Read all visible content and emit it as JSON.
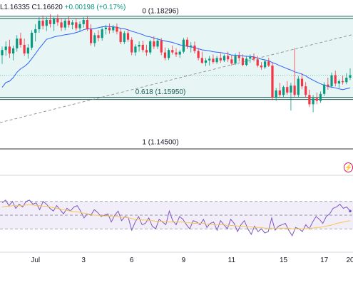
{
  "header": {
    "low": "L1.16335",
    "close": "C1.16620",
    "change": "+0.00198 (+0.17%)"
  },
  "icons": {
    "alert": "lightning-icon"
  },
  "colors": {
    "up": "#089981",
    "down": "#f23645",
    "ma": "#2962ff",
    "fib_band": "#e0f2f1",
    "fib_line": "#1a5c52",
    "rsi_line": "#7e57c2",
    "rsi_ma": "#f9c74f",
    "rsi_band": "#ede7f6"
  },
  "chart_data": [
    {
      "type": "candlestick",
      "title": "",
      "ylim": [
        1.142,
        1.1855
      ],
      "fib_levels": [
        {
          "ratio": 0,
          "price": 1.18296,
          "label": "0 (1.18296)"
        },
        {
          "ratio": 0.618,
          "price": 1.1595,
          "label": "0.618 (1.15950)"
        },
        {
          "ratio": 1,
          "price": 1.145,
          "label": "1 (1.14500)"
        }
      ],
      "x_ticks": [
        "Jul",
        "3",
        "6",
        "9",
        "11",
        "15",
        "17",
        "20"
      ],
      "trendline": {
        "style": "dashed",
        "from": [
          0,
          1.1525
        ],
        "to": [
          100,
          1.178
        ]
      },
      "candles": [
        [
          1.172,
          1.1745,
          1.1695,
          1.1735
        ],
        [
          1.1735,
          1.176,
          1.1718,
          1.1745
        ],
        [
          1.1745,
          1.1765,
          1.1712,
          1.1725
        ],
        [
          1.1725,
          1.1748,
          1.1705,
          1.174
        ],
        [
          1.174,
          1.1778,
          1.173,
          1.1768
        ],
        [
          1.1768,
          1.1785,
          1.1742,
          1.175
        ],
        [
          1.175,
          1.1768,
          1.1718,
          1.1725
        ],
        [
          1.1725,
          1.1752,
          1.171,
          1.1742
        ],
        [
          1.1742,
          1.1792,
          1.1735,
          1.1785
        ],
        [
          1.1785,
          1.181,
          1.176,
          1.1795
        ],
        [
          1.1795,
          1.183,
          1.1785,
          1.182
        ],
        [
          1.182,
          1.1835,
          1.1795,
          1.1805
        ],
        [
          1.1805,
          1.183,
          1.179,
          1.1822
        ],
        [
          1.1822,
          1.1838,
          1.18,
          1.181
        ],
        [
          1.181,
          1.183,
          1.179,
          1.1825
        ],
        [
          1.1825,
          1.1838,
          1.1805,
          1.1815
        ],
        [
          1.1815,
          1.1828,
          1.179,
          1.18
        ],
        [
          1.18,
          1.1825,
          1.1792,
          1.182
        ],
        [
          1.182,
          1.1832,
          1.18,
          1.1808
        ],
        [
          1.1808,
          1.1822,
          1.1795,
          1.1815
        ],
        [
          1.1815,
          1.1828,
          1.179,
          1.1798
        ],
        [
          1.1798,
          1.1818,
          1.179,
          1.181
        ],
        [
          1.181,
          1.183,
          1.18,
          1.1822
        ],
        [
          1.1822,
          1.1832,
          1.179,
          1.1795
        ],
        [
          1.1795,
          1.181,
          1.1748,
          1.1755
        ],
        [
          1.1755,
          1.1785,
          1.1745,
          1.1778
        ],
        [
          1.1778,
          1.1792,
          1.176,
          1.177
        ],
        [
          1.177,
          1.1802,
          1.1762,
          1.1795
        ],
        [
          1.1795,
          1.1808,
          1.178,
          1.18
        ],
        [
          1.18,
          1.1812,
          1.1782,
          1.1792
        ],
        [
          1.1792,
          1.1808,
          1.1785,
          1.1802
        ],
        [
          1.1802,
          1.1812,
          1.178,
          1.1788
        ],
        [
          1.1788,
          1.1798,
          1.1752,
          1.1758
        ],
        [
          1.1758,
          1.179,
          1.1752,
          1.1784
        ],
        [
          1.1784,
          1.1795,
          1.1758,
          1.1765
        ],
        [
          1.1765,
          1.1772,
          1.172,
          1.1728
        ],
        [
          1.1728,
          1.1752,
          1.1718,
          1.1745
        ],
        [
          1.1745,
          1.176,
          1.173,
          1.175
        ],
        [
          1.175,
          1.1762,
          1.1728,
          1.1735
        ],
        [
          1.1735,
          1.175,
          1.1718,
          1.1728
        ],
        [
          1.1728,
          1.1765,
          1.1722,
          1.176
        ],
        [
          1.176,
          1.1775,
          1.1738,
          1.1745
        ],
        [
          1.1745,
          1.177,
          1.1738,
          1.1762
        ],
        [
          1.1762,
          1.177,
          1.172,
          1.1728
        ],
        [
          1.1728,
          1.1742,
          1.1705,
          1.1712
        ],
        [
          1.1712,
          1.174,
          1.1706,
          1.1735
        ],
        [
          1.1735,
          1.1748,
          1.1722,
          1.1728
        ],
        [
          1.1728,
          1.174,
          1.1715,
          1.1722
        ],
        [
          1.1722,
          1.1735,
          1.1712,
          1.173
        ],
        [
          1.173,
          1.177,
          1.1725,
          1.1765
        ],
        [
          1.1765,
          1.1772,
          1.1738,
          1.1745
        ],
        [
          1.1745,
          1.1758,
          1.1728,
          1.1748
        ],
        [
          1.1748,
          1.176,
          1.1725,
          1.1732
        ],
        [
          1.1732,
          1.174,
          1.1705,
          1.1712
        ],
        [
          1.1712,
          1.173,
          1.1695,
          1.1698
        ],
        [
          1.1698,
          1.1712,
          1.1688,
          1.1705
        ],
        [
          1.1705,
          1.1718,
          1.169,
          1.171
        ],
        [
          1.171,
          1.1722,
          1.1695,
          1.17
        ],
        [
          1.17,
          1.1718,
          1.1695,
          1.1712
        ],
        [
          1.1712,
          1.1725,
          1.1698,
          1.1705
        ],
        [
          1.1705,
          1.1722,
          1.17,
          1.1718
        ],
        [
          1.1718,
          1.173,
          1.17,
          1.1708
        ],
        [
          1.1708,
          1.172,
          1.169,
          1.1696
        ],
        [
          1.1696,
          1.1725,
          1.1692,
          1.1718
        ],
        [
          1.1718,
          1.173,
          1.1702,
          1.1712
        ],
        [
          1.1712,
          1.1722,
          1.1688,
          1.1692
        ],
        [
          1.1692,
          1.1718,
          1.1688,
          1.171
        ],
        [
          1.171,
          1.1722,
          1.1698,
          1.1715
        ],
        [
          1.1715,
          1.1725,
          1.1702,
          1.1708
        ],
        [
          1.1708,
          1.1718,
          1.1685,
          1.169
        ],
        [
          1.169,
          1.17,
          1.1678,
          1.1685
        ],
        [
          1.1685,
          1.1708,
          1.168,
          1.1702
        ],
        [
          1.1702,
          1.1712,
          1.1686,
          1.169
        ],
        [
          1.169,
          1.1698,
          1.159,
          1.1598
        ],
        [
          1.1598,
          1.1625,
          1.1588,
          1.1618
        ],
        [
          1.1618,
          1.164,
          1.1598,
          1.1605
        ],
        [
          1.1605,
          1.1632,
          1.1598,
          1.1628
        ],
        [
          1.1628,
          1.1645,
          1.1605,
          1.1612
        ],
        [
          1.1612,
          1.164,
          1.156,
          1.1632
        ],
        [
          1.1632,
          1.174,
          1.1598,
          1.1605
        ],
        [
          1.1605,
          1.166,
          1.1598,
          1.1652
        ],
        [
          1.1652,
          1.1668,
          1.1622,
          1.163
        ],
        [
          1.163,
          1.1642,
          1.1598,
          1.1605
        ],
        [
          1.1605,
          1.162,
          1.157,
          1.1578
        ],
        [
          1.1578,
          1.1605,
          1.1555,
          1.1595
        ],
        [
          1.1595,
          1.1612,
          1.1578,
          1.1588
        ],
        [
          1.1588,
          1.1615,
          1.1582,
          1.1608
        ],
        [
          1.1608,
          1.1642,
          1.1602,
          1.1635
        ],
        [
          1.1635,
          1.1655,
          1.162,
          1.163
        ],
        [
          1.163,
          1.167,
          1.1625,
          1.1662
        ],
        [
          1.1662,
          1.1675,
          1.163,
          1.1638
        ],
        [
          1.1638,
          1.165,
          1.1625,
          1.1645
        ],
        [
          1.1645,
          1.166,
          1.1635,
          1.1642
        ],
        [
          1.1642,
          1.1668,
          1.1636,
          1.1655
        ],
        [
          1.1655,
          1.1682,
          1.1648,
          1.1662
        ]
      ]
    },
    {
      "type": "line",
      "title": "",
      "ylim": [
        0,
        100
      ],
      "bands": [
        30,
        50,
        70
      ],
      "series": [
        {
          "values": [
            68,
            72,
            64,
            70,
            60,
            66,
            62,
            70,
            72,
            66,
            68,
            58,
            70,
            66,
            60,
            56,
            64,
            58,
            52,
            60,
            56,
            62,
            64,
            56,
            46,
            52,
            50,
            58,
            54,
            48,
            50,
            52,
            40,
            50,
            56,
            42,
            48,
            46,
            28,
            40,
            48,
            36,
            38,
            46,
            34,
            30,
            44,
            40,
            36,
            56,
            42,
            36,
            48,
            44,
            36,
            30,
            42,
            40,
            36,
            44,
            32,
            38,
            40,
            28,
            42,
            36,
            30,
            44,
            38,
            26,
            36,
            42,
            30,
            22,
            34,
            26,
            30,
            24,
            26,
            46,
            28,
            34,
            36,
            38,
            28,
            20,
            32,
            30,
            26,
            36,
            30,
            40,
            48,
            44,
            38,
            48,
            52,
            60,
            62,
            66,
            60,
            62,
            56
          ]
        },
        {
          "values": [
            62,
            63,
            63,
            64,
            64,
            64,
            64,
            65,
            65,
            65,
            64,
            64,
            63,
            63,
            62,
            61,
            60,
            59,
            58,
            57,
            56,
            55,
            55,
            54,
            53,
            52,
            51,
            50,
            50,
            49,
            49,
            49,
            48,
            48,
            48,
            47,
            47,
            46,
            45,
            44,
            44,
            43,
            43,
            42,
            42,
            41,
            41,
            41,
            40,
            40,
            40,
            40,
            40,
            40,
            39,
            39,
            38,
            38,
            38,
            38,
            37,
            37,
            36,
            36,
            36,
            36,
            35,
            35,
            35,
            34,
            34,
            34,
            33,
            33,
            32,
            32,
            32,
            31,
            31,
            31,
            31,
            31,
            31,
            31,
            31,
            30,
            30,
            30,
            30,
            30,
            31,
            31,
            32,
            32,
            33,
            34,
            35,
            36,
            38,
            39,
            40,
            41,
            42
          ]
        }
      ]
    }
  ]
}
